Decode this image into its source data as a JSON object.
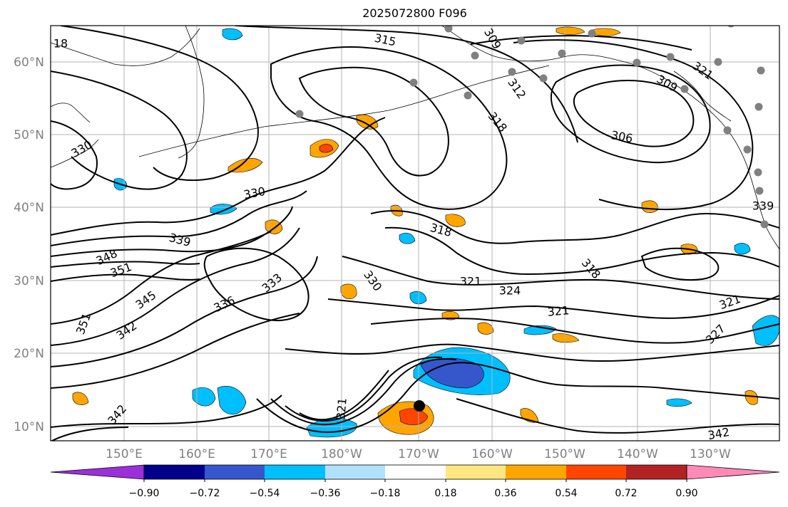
{
  "title": "2025072800 F096",
  "latitude_labels": [
    "10°N",
    "20°N",
    "30°N",
    "40°N",
    "50°N",
    "60°N"
  ],
  "longitude_labels": [
    "150°E",
    "160°E",
    "170°E",
    "180°W",
    "170°W",
    "160°W",
    "150°W",
    "140°W",
    "130°W"
  ],
  "colorbar": {
    "tick_labels": [
      "−0.90",
      "−0.72",
      "−0.54",
      "−0.36",
      "−0.18",
      "0.18",
      "0.36",
      "0.54",
      "0.72",
      "0.90"
    ],
    "bin_colors": [
      "#9b30d8",
      "#00008b",
      "#3657cc",
      "#00bfff",
      "#b0e2ff",
      "#ffffff",
      "#ffe680",
      "#ffa500",
      "#ff4500",
      "#b22222",
      "#ff8ab8"
    ],
    "extend": "both"
  },
  "contour_labels": [
    "18",
    "315",
    "309",
    "312",
    "318",
    "306",
    "309",
    "321",
    "330",
    "330",
    "339",
    "348",
    "351",
    "345",
    "342",
    "351",
    "333",
    "336",
    "330",
    "318",
    "318",
    "321",
    "324",
    "321",
    "321",
    "327",
    "342",
    "321",
    "342",
    "339"
  ],
  "colors": {
    "contour": "#000000",
    "coastline": "#000000",
    "grid": "#b3b3b3",
    "station_marker": "#808080",
    "center_marker": "#000000"
  }
}
